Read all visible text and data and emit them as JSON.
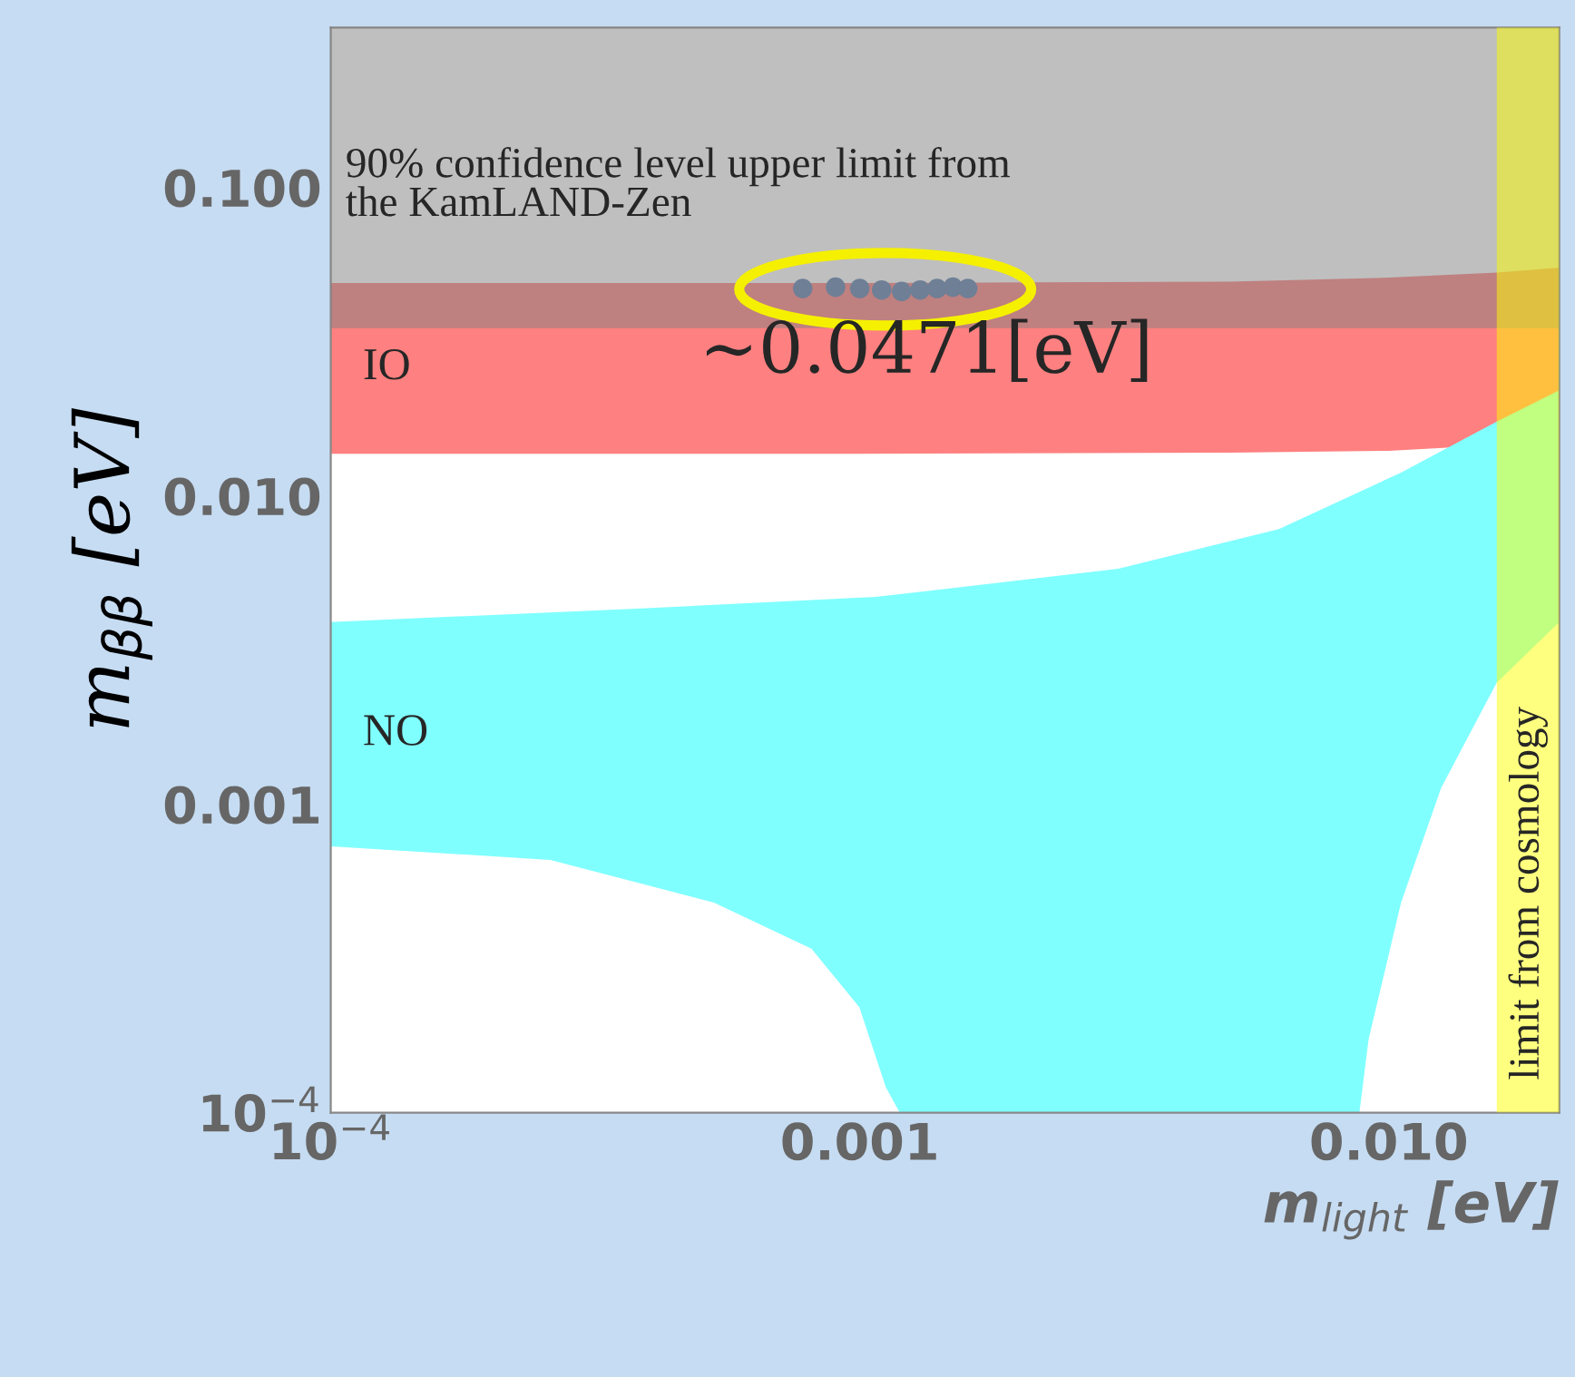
{
  "chart_data": {
    "type": "area",
    "xlabel": "m$_{light}$ [eV]",
    "ylabel": "m$_{ββ}$ [eV]",
    "log": "xy",
    "xlim": [
      0.0001,
      0.021
    ],
    "ylim": [
      0.0001,
      0.33
    ],
    "xticks": [
      {
        "value": 0.0001,
        "label": "10$^{−4}$"
      },
      {
        "value": 0.001,
        "label": "0.001"
      },
      {
        "value": 0.01,
        "label": "0.010"
      }
    ],
    "yticks": [
      {
        "value": 0.0001,
        "label": "10$^{−4}$"
      },
      {
        "value": 0.001,
        "label": "0.001"
      },
      {
        "value": 0.01,
        "label": "0.010"
      },
      {
        "value": 0.1,
        "label": "0.100"
      }
    ],
    "series": [
      {
        "name": "IO",
        "color": "#ff8080",
        "x": [
          0.0001,
          0.001,
          0.005,
          0.01,
          0.016,
          0.021,
          0.021,
          0.01,
          0.005,
          0.001,
          0.0001
        ],
        "values": [
          0.049,
          0.049,
          0.0495,
          0.051,
          0.053,
          0.055,
          0.015,
          0.014,
          0.0138,
          0.0137,
          0.0137
        ]
      },
      {
        "name": "NO",
        "color": "#80ffff",
        "x": [
          0.0001,
          0.00037,
          0.00107,
          0.00308,
          0.0062,
          0.01055,
          0.016,
          0.021,
          0.021,
          0.016,
          0.01256,
          0.01055,
          0.00916,
          0.0088,
          0.00119,
          0.00112,
          0.000998,
          0.00081,
          0.00053,
          0.00026,
          0.0001
        ],
        "values": [
          0.0039,
          0.0043,
          0.0047,
          0.0058,
          0.0078,
          0.0119,
          0.0174,
          0.022,
          0.0039,
          0.00248,
          0.00113,
          0.00048,
          0.000173,
          0.0001,
          0.0001,
          0.000121,
          0.00022,
          0.00034,
          0.00048,
          0.00066,
          0.00073
        ]
      },
      {
        "type": "scatter",
        "color": "#6e7f96",
        "x": [
          0.00078,
          0.0009,
          0.001,
          0.0011,
          0.0012,
          0.0013,
          0.0014,
          0.0015,
          0.0016
        ],
        "values": [
          0.047,
          0.0475,
          0.047,
          0.0465,
          0.046,
          0.0465,
          0.047,
          0.0475,
          0.047
        ],
        "marker": "circle"
      }
    ],
    "bands": [
      {
        "axis": "y",
        "from": 0.035,
        "to": 0.33,
        "label": "90% confidence level upper limit from\nthe KamLAND-Zen",
        "color": "#808080"
      },
      {
        "axis": "x",
        "from": 0.016,
        "to": 0.021,
        "label": "limit from cosmology",
        "color": "#ffff00"
      }
    ],
    "annotations": [
      "∼0.0471[eV]"
    ],
    "grid": false,
    "legend": false
  }
}
